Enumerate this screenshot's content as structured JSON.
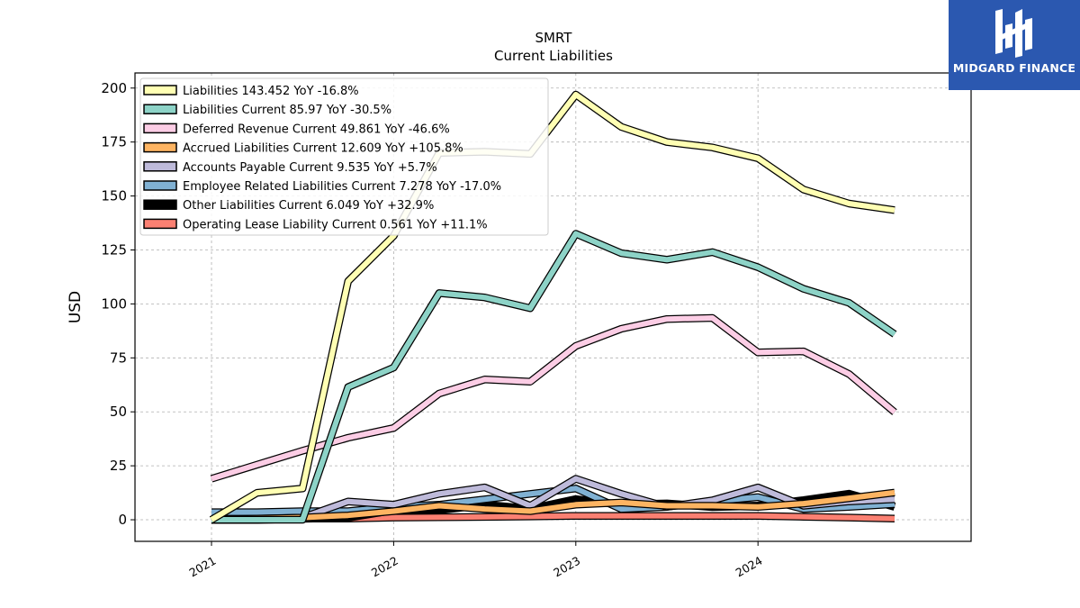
{
  "title_line1": "SMRT",
  "title_line2": "Current  Liabilities",
  "logo_text": "MIDGARD FINANCE",
  "chart_data": {
    "type": "line",
    "ylabel": "USD",
    "xlabel": "",
    "ylim": [
      -10,
      207
    ],
    "yticks": [
      0,
      25,
      50,
      75,
      100,
      125,
      150,
      175,
      200
    ],
    "xticks": [
      "2021",
      "2022",
      "2023",
      "2024"
    ],
    "grid": true,
    "legend_position": "top-left",
    "x": [
      2021.0,
      2021.25,
      2021.5,
      2021.75,
      2022.0,
      2022.25,
      2022.5,
      2022.75,
      2023.0,
      2023.25,
      2023.5,
      2023.75,
      2024.0,
      2024.25,
      2024.5,
      2024.75
    ],
    "series": [
      {
        "name": "Liabilities",
        "legend": "Liabilities  143.452 YoY -16.8%",
        "color": "#ffffb3",
        "values": [
          0,
          12.5,
          14.5,
          110.5,
          131.5,
          170,
          170.5,
          169.5,
          197,
          182,
          175,
          172.5,
          167.5,
          153,
          146.5,
          143.452
        ]
      },
      {
        "name": "Liabilities Current",
        "legend": "Liabilities Current  85.97 YoY -30.5%",
        "color": "#8dd3c7",
        "values": [
          0,
          0,
          0,
          61.5,
          70.5,
          105,
          103,
          98,
          132.5,
          123.5,
          120.5,
          124,
          117,
          107,
          100.5,
          85.97
        ]
      },
      {
        "name": "Deferred Revenue Current",
        "legend": "Deferred Revenue Current  49.861 YoY -46.6%",
        "color": "#fccde5",
        "values": [
          19,
          25.5,
          32,
          38,
          42.5,
          58.5,
          65,
          64,
          80.5,
          88.5,
          93,
          93.5,
          77.5,
          78,
          67.5,
          49.861
        ]
      },
      {
        "name": "Accrued Liabilities Current",
        "legend": "Accrued Liabilities Current  12.609 YoY +105.8%",
        "color": "#fdb462",
        "values": [
          0,
          0.5,
          1,
          2,
          4,
          6.5,
          5,
          4,
          7,
          8,
          6.5,
          6.5,
          6,
          7.5,
          10,
          12.609
        ]
      },
      {
        "name": "Accounts Payable Current",
        "legend": "Accounts Payable Current  9.535 YoY +5.7%",
        "color": "#bebada",
        "values": [
          0,
          0,
          1,
          8.5,
          7,
          12,
          15,
          6.5,
          19,
          12,
          6,
          9,
          15,
          6.5,
          8.5,
          9.535
        ]
      },
      {
        "name": "Employee Related Liabilities Current",
        "legend": "Employee Related Liabilities Current  7.278 YoY -17.0%",
        "color": "#80b1d3",
        "values": [
          3.5,
          3.5,
          4,
          4,
          6,
          7,
          9.5,
          12,
          14.5,
          5,
          6,
          8.5,
          10.5,
          5,
          6,
          7.278
        ]
      },
      {
        "name": "Other Liabilities Current",
        "legend": "Other Liabilities Current  6.049 YoY +32.9%",
        "color": "#000000",
        "values": [
          0,
          0,
          0.5,
          1,
          4.5,
          4.5,
          7,
          5,
          9.5,
          7,
          7.5,
          6,
          6.5,
          9,
          12,
          6.049
        ]
      },
      {
        "name": "Operating Lease Liability Current",
        "legend": "Operating Lease Liability Current  0.561 YoY +11.1%",
        "color": "#fb8072",
        "values": [
          0.5,
          0.5,
          0.5,
          0.5,
          1,
          1.2,
          1.3,
          1.5,
          1.8,
          1.8,
          1.8,
          1.8,
          1.8,
          1.4,
          1,
          0.561
        ]
      }
    ]
  }
}
